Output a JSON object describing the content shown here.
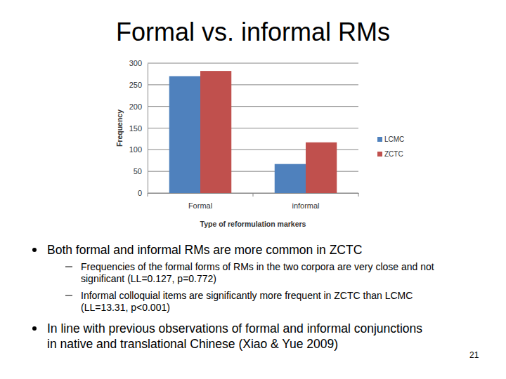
{
  "chart_data": {
    "type": "bar",
    "categories": [
      "Formal",
      "informal"
    ],
    "series": [
      {
        "name": "LCMC",
        "color": "#4f81bd",
        "values": [
          270,
          67
        ]
      },
      {
        "name": "ZCTC",
        "color": "#c0504d",
        "values": [
          282,
          117
        ]
      }
    ],
    "x_label": "Type of reformulation markers",
    "y_label": "Frequency",
    "ylim": [
      0,
      300
    ],
    "yticks": [
      0,
      50,
      100,
      150,
      200,
      250,
      300
    ],
    "grid": true,
    "legend": "right"
  },
  "slide": {
    "title": "Formal vs. informal RMs",
    "bullets": [
      {
        "lines": [
          "Both formal and informal RMs are more common in ZCTC"
        ],
        "sub": [
          {
            "lines": [
              "Frequencies of the formal forms of RMs in the two corpora are very close and not",
              "significant (LL=0.127, p=0.772)"
            ]
          },
          {
            "lines": [
              "Informal colloquial items are significantly more frequent in ZCTC than LCMC",
              "(LL=13.31, p<0.001)"
            ]
          }
        ]
      },
      {
        "lines": [
          "In line with previous observations of formal and informal conjunctions",
          "in native and translational Chinese (Xiao & Yue 2009)"
        ],
        "sub": []
      }
    ],
    "page_number": 21
  }
}
